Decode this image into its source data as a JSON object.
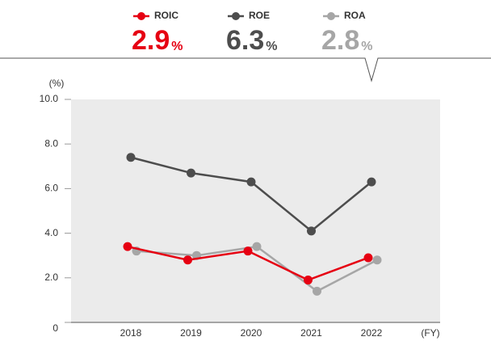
{
  "chart_data": {
    "type": "line",
    "header_unit": "%",
    "y_label": "(%)",
    "x_label": "(FY)",
    "categories": [
      "2018",
      "2019",
      "2020",
      "2021",
      "2022"
    ],
    "series": [
      {
        "name": "ROIC",
        "color": "#e60012",
        "values": [
          3.4,
          2.8,
          3.2,
          1.9,
          2.9
        ]
      },
      {
        "name": "ROE",
        "color": "#4d4d4d",
        "values": [
          7.4,
          6.7,
          6.3,
          4.1,
          6.3
        ]
      },
      {
        "name": "ROA",
        "color": "#a6a6a6",
        "values": [
          3.2,
          3.0,
          3.4,
          1.4,
          2.8
        ]
      }
    ],
    "ylim": [
      0,
      10
    ],
    "yticks": [
      0,
      {
        "value": 2,
        "label": "2.0"
      },
      {
        "value": 4,
        "label": "4.0"
      },
      {
        "value": 6,
        "label": "6.0"
      },
      {
        "value": 8,
        "label": "8.0"
      },
      {
        "value": 10,
        "label": "10.0"
      }
    ]
  }
}
